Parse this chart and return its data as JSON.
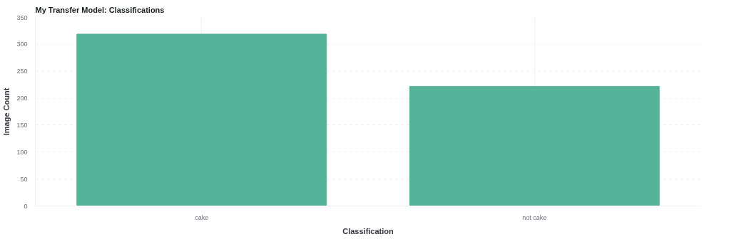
{
  "chart_data": {
    "type": "bar",
    "title": "My Transfer Model: Classifications",
    "xlabel": "Classification",
    "ylabel": "Image Count",
    "categories": [
      "cake",
      "not cake"
    ],
    "values": [
      319,
      222
    ],
    "color": "#54b399",
    "ylim": [
      0,
      350
    ],
    "yticks": [
      0,
      50,
      100,
      150,
      200,
      250,
      300,
      350
    ],
    "grid": true
  }
}
